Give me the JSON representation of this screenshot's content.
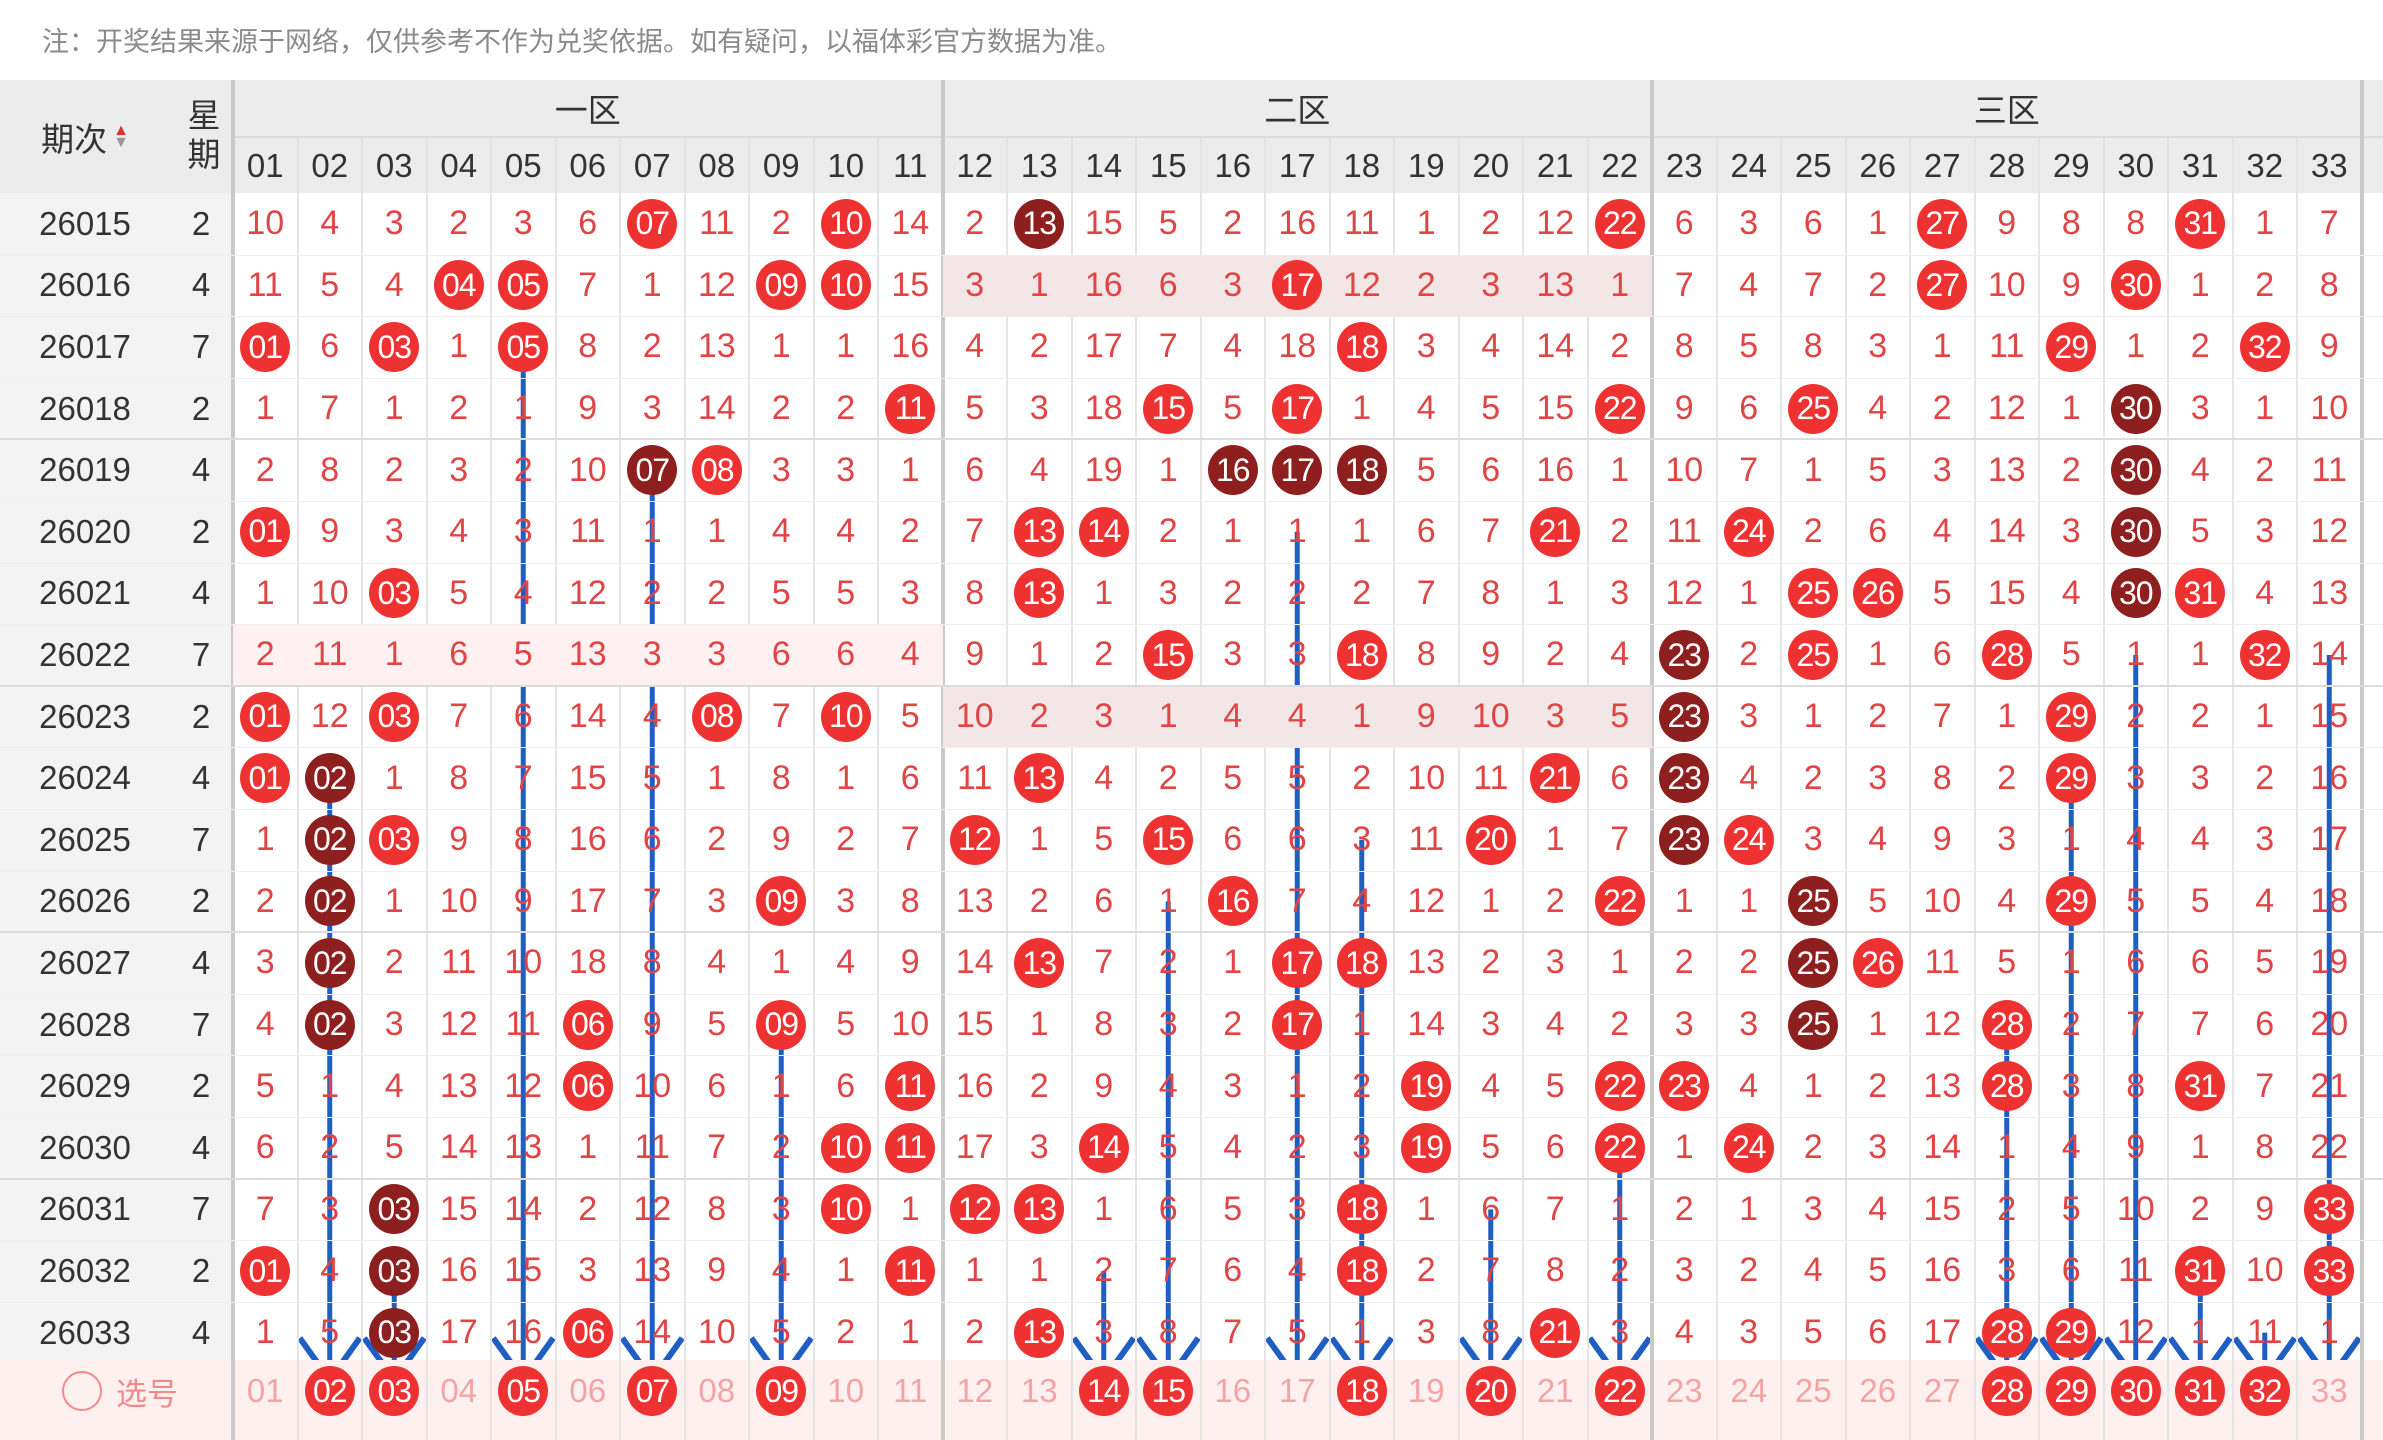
{
  "note": "注：开奖结果来源于网络，仅供参考不作为兑奖依据。如有疑问，以福体彩官方数据为准。",
  "header": {
    "period_label": "期次",
    "week_label": "星期",
    "zones": [
      "一区",
      "二区",
      "三区"
    ],
    "columns": [
      "01",
      "02",
      "03",
      "04",
      "05",
      "06",
      "07",
      "08",
      "09",
      "10",
      "11",
      "12",
      "13",
      "14",
      "15",
      "16",
      "17",
      "18",
      "19",
      "20",
      "21",
      "22",
      "23",
      "24",
      "25",
      "26",
      "27",
      "28",
      "29",
      "30",
      "31",
      "32",
      "33"
    ]
  },
  "rows": [
    {
      "period": "26015",
      "week": "2",
      "cells": [
        "10",
        "4",
        "3",
        "2",
        "3",
        "6",
        "07",
        "11",
        "2",
        "10",
        "14",
        "2",
        "13",
        "15",
        "5",
        "2",
        "16",
        "11",
        "1",
        "2",
        "12",
        "22",
        "6",
        "3",
        "6",
        "1",
        "27",
        "9",
        "8",
        "8",
        "31",
        "1",
        "7"
      ],
      "dark": [
        13
      ]
    },
    {
      "period": "26016",
      "week": "4",
      "cells": [
        "11",
        "5",
        "4",
        "04",
        "05",
        "7",
        "1",
        "12",
        "09",
        "10",
        "15",
        "3",
        "1",
        "16",
        "6",
        "3",
        "17",
        "12",
        "2",
        "3",
        "13",
        "1",
        "7",
        "4",
        "7",
        "2",
        "27",
        "10",
        "9",
        "30",
        "1",
        "2",
        "8"
      ],
      "dark": []
    },
    {
      "period": "26017",
      "week": "7",
      "cells": [
        "01",
        "6",
        "03",
        "1",
        "05",
        "8",
        "2",
        "13",
        "1",
        "1",
        "16",
        "4",
        "2",
        "17",
        "7",
        "4",
        "18",
        "18",
        "3",
        "4",
        "14",
        "2",
        "8",
        "5",
        "8",
        "3",
        "1",
        "11",
        "29",
        "1",
        "2",
        "32",
        "9"
      ],
      "dark": []
    },
    {
      "period": "26018",
      "week": "2",
      "cells": [
        "1",
        "7",
        "1",
        "2",
        "1",
        "9",
        "3",
        "14",
        "2",
        "2",
        "11",
        "5",
        "3",
        "18",
        "15",
        "5",
        "17",
        "1",
        "4",
        "5",
        "15",
        "22",
        "9",
        "6",
        "25",
        "4",
        "2",
        "12",
        "1",
        "30",
        "3",
        "1",
        "10"
      ],
      "dark": [
        30
      ]
    },
    {
      "period": "26019",
      "week": "4",
      "cells": [
        "2",
        "8",
        "2",
        "3",
        "2",
        "10",
        "07",
        "08",
        "3",
        "3",
        "1",
        "6",
        "4",
        "19",
        "1",
        "16",
        "17",
        "18",
        "5",
        "6",
        "16",
        "1",
        "10",
        "7",
        "1",
        "5",
        "3",
        "13",
        "2",
        "30",
        "4",
        "2",
        "11"
      ],
      "dark": [
        7,
        16,
        17,
        18,
        30
      ]
    },
    {
      "period": "26020",
      "week": "2",
      "cells": [
        "01",
        "9",
        "3",
        "4",
        "3",
        "11",
        "1",
        "1",
        "4",
        "4",
        "2",
        "7",
        "13",
        "14",
        "2",
        "1",
        "1",
        "1",
        "6",
        "7",
        "21",
        "2",
        "11",
        "24",
        "2",
        "6",
        "4",
        "14",
        "3",
        "30",
        "5",
        "3",
        "12"
      ],
      "dark": [
        30
      ]
    },
    {
      "period": "26021",
      "week": "4",
      "cells": [
        "1",
        "10",
        "03",
        "5",
        "4",
        "12",
        "2",
        "2",
        "5",
        "5",
        "3",
        "8",
        "13",
        "1",
        "3",
        "2",
        "2",
        "2",
        "7",
        "8",
        "1",
        "3",
        "12",
        "1",
        "25",
        "26",
        "5",
        "15",
        "4",
        "30",
        "31",
        "4",
        "13"
      ],
      "dark": [
        30
      ]
    },
    {
      "period": "26022",
      "week": "7",
      "cells": [
        "2",
        "11",
        "1",
        "6",
        "5",
        "13",
        "3",
        "3",
        "6",
        "6",
        "4",
        "9",
        "1",
        "2",
        "15",
        "3",
        "3",
        "18",
        "8",
        "9",
        "2",
        "4",
        "23",
        "2",
        "25",
        "1",
        "6",
        "28",
        "5",
        "1",
        "1",
        "32",
        "14"
      ],
      "dark": [
        23
      ]
    },
    {
      "period": "26023",
      "week": "2",
      "cells": [
        "01",
        "12",
        "03",
        "7",
        "6",
        "14",
        "4",
        "08",
        "7",
        "10",
        "5",
        "10",
        "2",
        "3",
        "1",
        "4",
        "4",
        "1",
        "9",
        "10",
        "3",
        "5",
        "23",
        "3",
        "1",
        "2",
        "7",
        "1",
        "29",
        "2",
        "2",
        "1",
        "15"
      ],
      "dark": [
        23
      ]
    },
    {
      "period": "26024",
      "week": "4",
      "cells": [
        "01",
        "02",
        "1",
        "8",
        "7",
        "15",
        "5",
        "1",
        "8",
        "1",
        "6",
        "11",
        "13",
        "4",
        "2",
        "5",
        "5",
        "2",
        "10",
        "11",
        "21",
        "6",
        "23",
        "4",
        "2",
        "3",
        "8",
        "2",
        "29",
        "3",
        "3",
        "2",
        "16"
      ],
      "dark": [
        2,
        23
      ]
    },
    {
      "period": "26025",
      "week": "7",
      "cells": [
        "1",
        "02",
        "03",
        "9",
        "8",
        "16",
        "6",
        "2",
        "9",
        "2",
        "7",
        "12",
        "1",
        "5",
        "15",
        "6",
        "6",
        "3",
        "11",
        "20",
        "1",
        "7",
        "23",
        "24",
        "3",
        "4",
        "9",
        "3",
        "1",
        "4",
        "4",
        "3",
        "17"
      ],
      "dark": [
        2,
        23
      ]
    },
    {
      "period": "26026",
      "week": "2",
      "cells": [
        "2",
        "02",
        "1",
        "10",
        "9",
        "17",
        "7",
        "3",
        "09",
        "3",
        "8",
        "13",
        "2",
        "6",
        "1",
        "16",
        "7",
        "4",
        "12",
        "1",
        "2",
        "22",
        "1",
        "1",
        "25",
        "5",
        "10",
        "4",
        "29",
        "5",
        "5",
        "4",
        "18"
      ],
      "dark": [
        2,
        25
      ]
    },
    {
      "period": "26027",
      "week": "4",
      "cells": [
        "3",
        "02",
        "2",
        "11",
        "10",
        "18",
        "8",
        "4",
        "1",
        "4",
        "9",
        "14",
        "13",
        "7",
        "2",
        "1",
        "17",
        "18",
        "13",
        "2",
        "3",
        "1",
        "2",
        "2",
        "25",
        "26",
        "11",
        "5",
        "1",
        "6",
        "6",
        "5",
        "19"
      ],
      "dark": [
        2,
        25
      ]
    },
    {
      "period": "26028",
      "week": "7",
      "cells": [
        "4",
        "02",
        "3",
        "12",
        "11",
        "06",
        "9",
        "5",
        "09",
        "5",
        "10",
        "15",
        "1",
        "8",
        "3",
        "2",
        "17",
        "1",
        "14",
        "3",
        "4",
        "2",
        "3",
        "3",
        "25",
        "1",
        "12",
        "28",
        "2",
        "7",
        "7",
        "6",
        "20"
      ],
      "dark": [
        2,
        25
      ]
    },
    {
      "period": "26029",
      "week": "2",
      "cells": [
        "5",
        "1",
        "4",
        "13",
        "12",
        "06",
        "10",
        "6",
        "1",
        "6",
        "11",
        "16",
        "2",
        "9",
        "4",
        "3",
        "1",
        "2",
        "19",
        "4",
        "5",
        "22",
        "23",
        "4",
        "1",
        "2",
        "13",
        "28",
        "3",
        "8",
        "31",
        "7",
        "21"
      ],
      "dark": []
    },
    {
      "period": "26030",
      "week": "4",
      "cells": [
        "6",
        "2",
        "5",
        "14",
        "13",
        "1",
        "11",
        "7",
        "2",
        "10",
        "11",
        "17",
        "3",
        "14",
        "5",
        "4",
        "2",
        "3",
        "19",
        "5",
        "6",
        "22",
        "1",
        "24",
        "2",
        "3",
        "14",
        "1",
        "4",
        "9",
        "1",
        "8",
        "22"
      ],
      "dark": []
    },
    {
      "period": "26031",
      "week": "7",
      "cells": [
        "7",
        "3",
        "03",
        "15",
        "14",
        "2",
        "12",
        "8",
        "3",
        "10",
        "1",
        "12",
        "13",
        "1",
        "6",
        "5",
        "3",
        "18",
        "1",
        "6",
        "7",
        "1",
        "2",
        "1",
        "3",
        "4",
        "15",
        "2",
        "5",
        "10",
        "2",
        "9",
        "33"
      ],
      "dark": [
        3
      ]
    },
    {
      "period": "26032",
      "week": "2",
      "cells": [
        "01",
        "4",
        "03",
        "16",
        "15",
        "3",
        "13",
        "9",
        "4",
        "1",
        "11",
        "1",
        "1",
        "2",
        "7",
        "6",
        "4",
        "18",
        "2",
        "7",
        "8",
        "2",
        "3",
        "2",
        "4",
        "5",
        "16",
        "3",
        "6",
        "11",
        "31",
        "10",
        "33"
      ],
      "dark": [
        3
      ]
    },
    {
      "period": "26033",
      "week": "4",
      "cells": [
        "1",
        "5",
        "03",
        "17",
        "16",
        "06",
        "14",
        "10",
        "5",
        "2",
        "1",
        "2",
        "13",
        "3",
        "8",
        "7",
        "5",
        "1",
        "3",
        "8",
        "21",
        "3",
        "4",
        "3",
        "5",
        "6",
        "17",
        "28",
        "29",
        "12",
        "1",
        "11",
        "1"
      ],
      "dark": [
        3
      ]
    }
  ],
  "selection_row": {
    "label": "选号",
    "selected": [
      "02",
      "03",
      "05",
      "07",
      "09",
      "14",
      "15",
      "18",
      "20",
      "22",
      "28",
      "29",
      "30",
      "31",
      "32"
    ]
  },
  "colors": {
    "ball_red": "#ee3232",
    "ball_dark": "#8e1f1f",
    "arrow": "#1f5fc4",
    "number": "#e04545"
  }
}
